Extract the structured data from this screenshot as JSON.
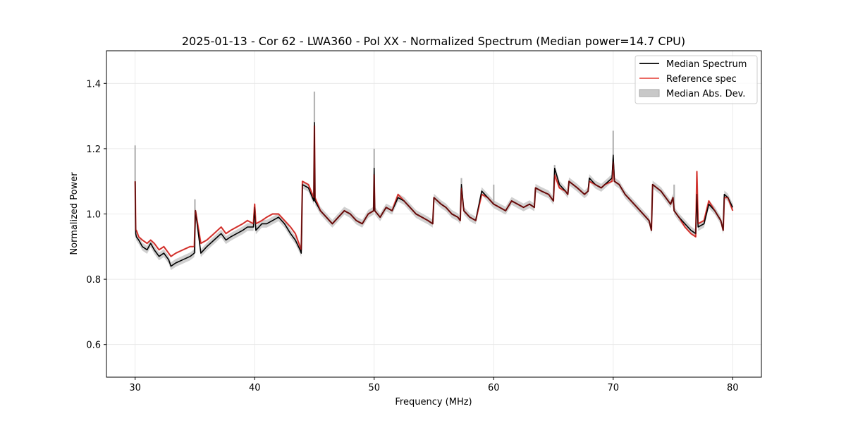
{
  "chart_data": {
    "type": "line",
    "title": "2025-01-13 - Cor 62 - LWA360 - Pol XX - Normalized Spectrum (Median power=14.7 CPU)",
    "xlabel": "Frequency (MHz)",
    "ylabel": "Normalized Power",
    "xlim": [
      27.6,
      82.4
    ],
    "ylim": [
      0.5,
      1.5
    ],
    "xticks": [
      30,
      40,
      50,
      60,
      70,
      80
    ],
    "yticks": [
      0.6,
      0.8,
      1.0,
      1.2,
      1.4
    ],
    "xtick_labels": [
      "30",
      "40",
      "50",
      "60",
      "70",
      "80"
    ],
    "ytick_labels": [
      "0.6",
      "0.8",
      "1.0",
      "1.2",
      "1.4"
    ],
    "grid": true,
    "legend_position": "top-right",
    "colors": {
      "median": "#000000",
      "reference": "#e8554e",
      "mad": "#c8c8c8"
    },
    "series": [
      {
        "name": "Median Spectrum",
        "x": [
          30.0,
          30.05,
          30.1,
          30.3,
          30.6,
          31.0,
          31.3,
          31.6,
          32.0,
          32.4,
          32.8,
          33.0,
          33.4,
          34.0,
          34.6,
          34.95,
          35.05,
          35.5,
          36.0,
          36.6,
          37.2,
          37.6,
          38.0,
          38.5,
          39.0,
          39.4,
          39.9,
          40.0,
          40.1,
          40.6,
          41.0,
          41.5,
          42.0,
          42.5,
          43.0,
          43.4,
          43.8,
          43.9,
          44.0,
          44.5,
          44.95,
          45.0,
          45.05,
          45.5,
          46.0,
          46.5,
          47.0,
          47.5,
          48.0,
          48.5,
          49.0,
          49.5,
          49.95,
          50.0,
          50.05,
          50.5,
          51.0,
          51.5,
          52.0,
          52.5,
          53.0,
          53.5,
          54.0,
          54.5,
          54.9,
          55.0,
          55.6,
          56.0,
          56.5,
          57.0,
          57.2,
          57.3,
          57.5,
          58.0,
          58.5,
          59.0,
          59.5,
          60.0,
          60.5,
          61.0,
          61.5,
          62.0,
          62.5,
          63.0,
          63.4,
          63.5,
          64.0,
          64.6,
          65.0,
          65.1,
          65.5,
          66.0,
          66.2,
          66.3,
          67.0,
          67.6,
          67.9,
          68.0,
          68.5,
          69.0,
          69.3,
          69.9,
          70.0,
          70.1,
          70.5,
          71.0,
          72.0,
          73.0,
          73.2,
          73.3,
          74.0,
          74.8,
          75.0,
          75.1,
          75.5,
          76.0,
          76.5,
          76.9,
          77.0,
          77.1,
          77.6,
          78.0,
          78.5,
          79.0,
          79.2,
          79.3,
          79.6,
          80.0
        ],
        "y": [
          1.1,
          0.94,
          0.93,
          0.92,
          0.9,
          0.89,
          0.91,
          0.89,
          0.87,
          0.88,
          0.86,
          0.84,
          0.85,
          0.86,
          0.87,
          0.88,
          1.01,
          0.88,
          0.9,
          0.92,
          0.94,
          0.92,
          0.93,
          0.94,
          0.95,
          0.96,
          0.96,
          1.02,
          0.95,
          0.97,
          0.97,
          0.98,
          0.99,
          0.97,
          0.94,
          0.92,
          0.89,
          0.88,
          1.09,
          1.08,
          1.04,
          1.28,
          1.04,
          1.01,
          0.99,
          0.97,
          0.99,
          1.01,
          1.0,
          0.98,
          0.97,
          1.0,
          1.01,
          1.14,
          1.01,
          0.99,
          1.02,
          1.01,
          1.05,
          1.04,
          1.02,
          1.0,
          0.99,
          0.98,
          0.97,
          1.05,
          1.03,
          1.02,
          1.0,
          0.99,
          0.98,
          1.09,
          1.01,
          0.99,
          0.98,
          1.07,
          1.05,
          1.03,
          1.02,
          1.01,
          1.04,
          1.03,
          1.02,
          1.03,
          1.02,
          1.08,
          1.07,
          1.06,
          1.04,
          1.14,
          1.09,
          1.07,
          1.06,
          1.1,
          1.08,
          1.06,
          1.07,
          1.11,
          1.09,
          1.08,
          1.09,
          1.11,
          1.18,
          1.1,
          1.09,
          1.06,
          1.02,
          0.98,
          0.95,
          1.09,
          1.07,
          1.03,
          1.05,
          1.01,
          0.99,
          0.97,
          0.95,
          0.94,
          1.06,
          0.96,
          0.97,
          1.03,
          1.01,
          0.98,
          0.95,
          1.06,
          1.05,
          1.02
        ],
        "style": "solid"
      },
      {
        "name": "Reference spec",
        "x": [
          30.0,
          30.05,
          30.1,
          30.3,
          30.6,
          31.0,
          31.3,
          31.6,
          32.0,
          32.4,
          32.8,
          33.0,
          33.4,
          34.0,
          34.6,
          34.95,
          35.05,
          35.5,
          36.0,
          36.6,
          37.2,
          37.6,
          38.0,
          38.5,
          39.0,
          39.4,
          39.9,
          40.0,
          40.1,
          40.6,
          41.0,
          41.5,
          42.0,
          42.5,
          43.0,
          43.4,
          43.8,
          43.9,
          44.0,
          44.5,
          44.95,
          45.0,
          45.05,
          45.5,
          46.0,
          46.5,
          47.0,
          47.5,
          48.0,
          48.5,
          49.0,
          49.5,
          49.95,
          50.0,
          50.05,
          50.5,
          51.0,
          51.5,
          52.0,
          52.5,
          53.0,
          53.5,
          54.0,
          54.5,
          54.9,
          55.0,
          55.6,
          56.0,
          56.5,
          57.0,
          57.2,
          57.3,
          57.5,
          58.0,
          58.5,
          59.0,
          59.5,
          60.0,
          60.5,
          61.0,
          61.5,
          62.0,
          62.5,
          63.0,
          63.4,
          63.5,
          64.0,
          64.6,
          65.0,
          65.1,
          65.5,
          66.0,
          66.2,
          66.3,
          67.0,
          67.6,
          67.9,
          68.0,
          68.5,
          69.0,
          69.3,
          69.9,
          70.0,
          70.1,
          70.5,
          71.0,
          72.0,
          73.0,
          73.2,
          73.3,
          74.0,
          74.8,
          75.0,
          75.1,
          75.5,
          76.0,
          76.5,
          76.9,
          77.0,
          77.1,
          77.6,
          78.0,
          78.5,
          79.0,
          79.2,
          79.3,
          79.6,
          80.0
        ],
        "y": [
          1.1,
          0.95,
          0.95,
          0.93,
          0.92,
          0.91,
          0.92,
          0.91,
          0.89,
          0.9,
          0.88,
          0.87,
          0.88,
          0.89,
          0.9,
          0.9,
          1.01,
          0.91,
          0.92,
          0.94,
          0.96,
          0.94,
          0.95,
          0.96,
          0.97,
          0.98,
          0.97,
          1.03,
          0.97,
          0.98,
          0.99,
          1.0,
          1.0,
          0.98,
          0.96,
          0.94,
          0.9,
          0.89,
          1.1,
          1.09,
          1.05,
          1.27,
          1.05,
          1.01,
          0.99,
          0.97,
          0.99,
          1.01,
          1.0,
          0.98,
          0.97,
          1.0,
          1.01,
          1.12,
          1.01,
          0.99,
          1.02,
          1.01,
          1.06,
          1.04,
          1.02,
          1.0,
          0.99,
          0.98,
          0.97,
          1.05,
          1.03,
          1.02,
          1.0,
          0.99,
          0.98,
          1.08,
          1.01,
          0.99,
          0.98,
          1.06,
          1.05,
          1.03,
          1.02,
          1.01,
          1.04,
          1.03,
          1.02,
          1.03,
          1.02,
          1.08,
          1.07,
          1.06,
          1.04,
          1.12,
          1.08,
          1.07,
          1.06,
          1.1,
          1.08,
          1.06,
          1.07,
          1.1,
          1.09,
          1.08,
          1.09,
          1.1,
          1.16,
          1.1,
          1.09,
          1.06,
          1.02,
          0.98,
          0.95,
          1.09,
          1.07,
          1.03,
          1.05,
          1.01,
          0.99,
          0.96,
          0.94,
          0.93,
          1.13,
          0.97,
          0.98,
          1.04,
          1.01,
          0.98,
          0.95,
          1.05,
          1.05,
          1.01
        ],
        "style": "solid"
      },
      {
        "name": "Median Abs. Dev.",
        "fill": "band",
        "spread": 0.012
      }
    ],
    "mad_spikes": [
      {
        "x": 30.0,
        "top": 1.21
      },
      {
        "x": 35.0,
        "top": 1.045
      },
      {
        "x": 45.0,
        "top": 1.375
      },
      {
        "x": 50.0,
        "top": 1.2
      },
      {
        "x": 57.3,
        "top": 1.11
      },
      {
        "x": 60.0,
        "top": 1.09
      },
      {
        "x": 65.1,
        "top": 1.15
      },
      {
        "x": 70.0,
        "top": 1.255
      },
      {
        "x": 75.1,
        "top": 1.09
      }
    ]
  }
}
